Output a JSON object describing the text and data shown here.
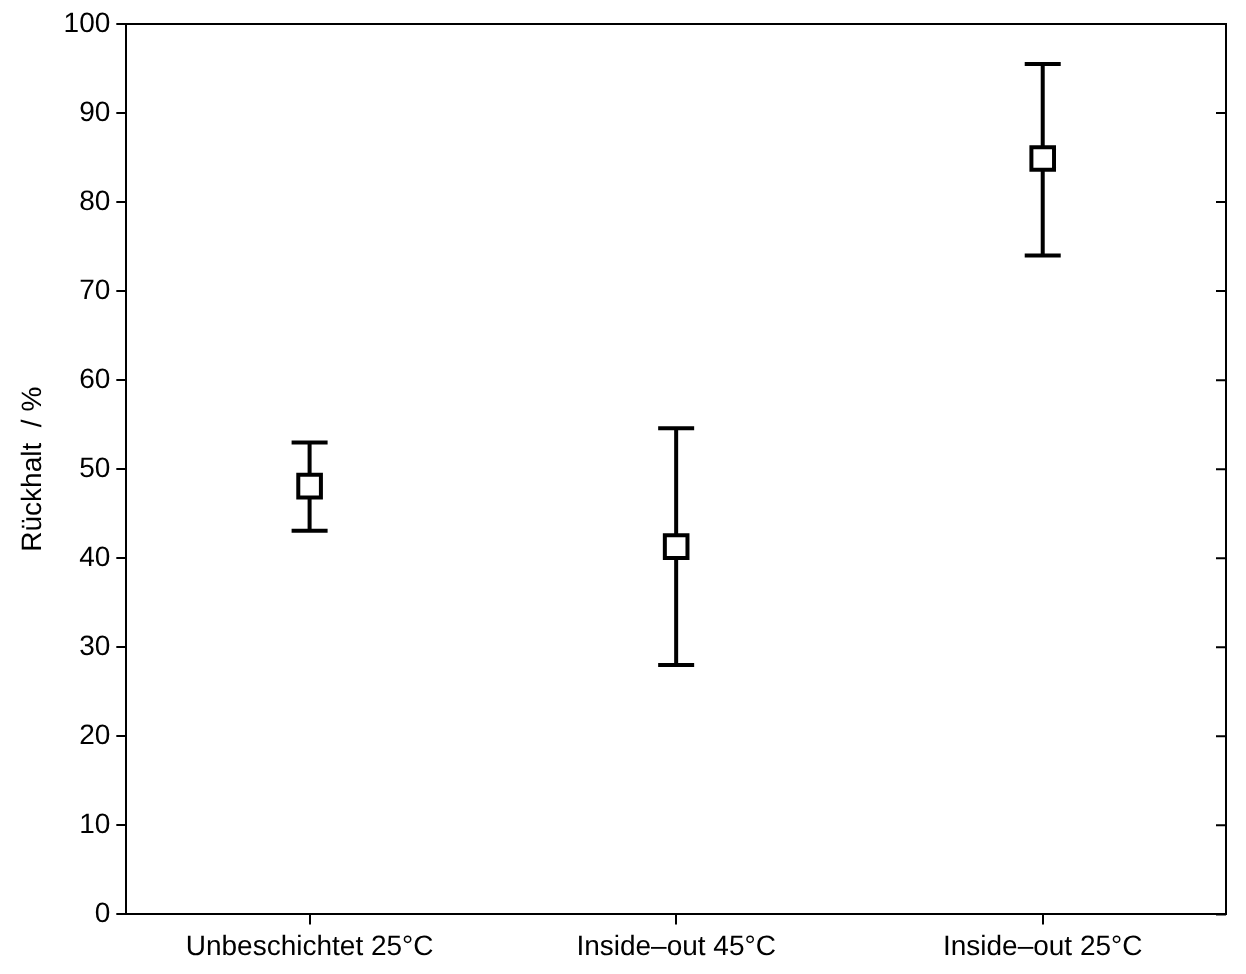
{
  "chart_data": {
    "type": "scatter",
    "ylabel": "Rückhalt  / %",
    "categories": [
      "Unbeschichtet 25°C",
      "Inside–out 45°C",
      "Inside–out 25°C"
    ],
    "values": [
      48.1,
      41.3,
      84.9
    ],
    "errors": [
      [
        43.1,
        53.0
      ],
      [
        28.0,
        54.6
      ],
      [
        74.0,
        95.5
      ]
    ],
    "color": "#000000",
    "marker": "square",
    "ylim": [
      0,
      100
    ],
    "yticks": [
      0,
      10,
      20,
      30,
      40,
      50,
      60,
      70,
      80,
      90,
      100
    ],
    "grid": false,
    "legend": false
  }
}
